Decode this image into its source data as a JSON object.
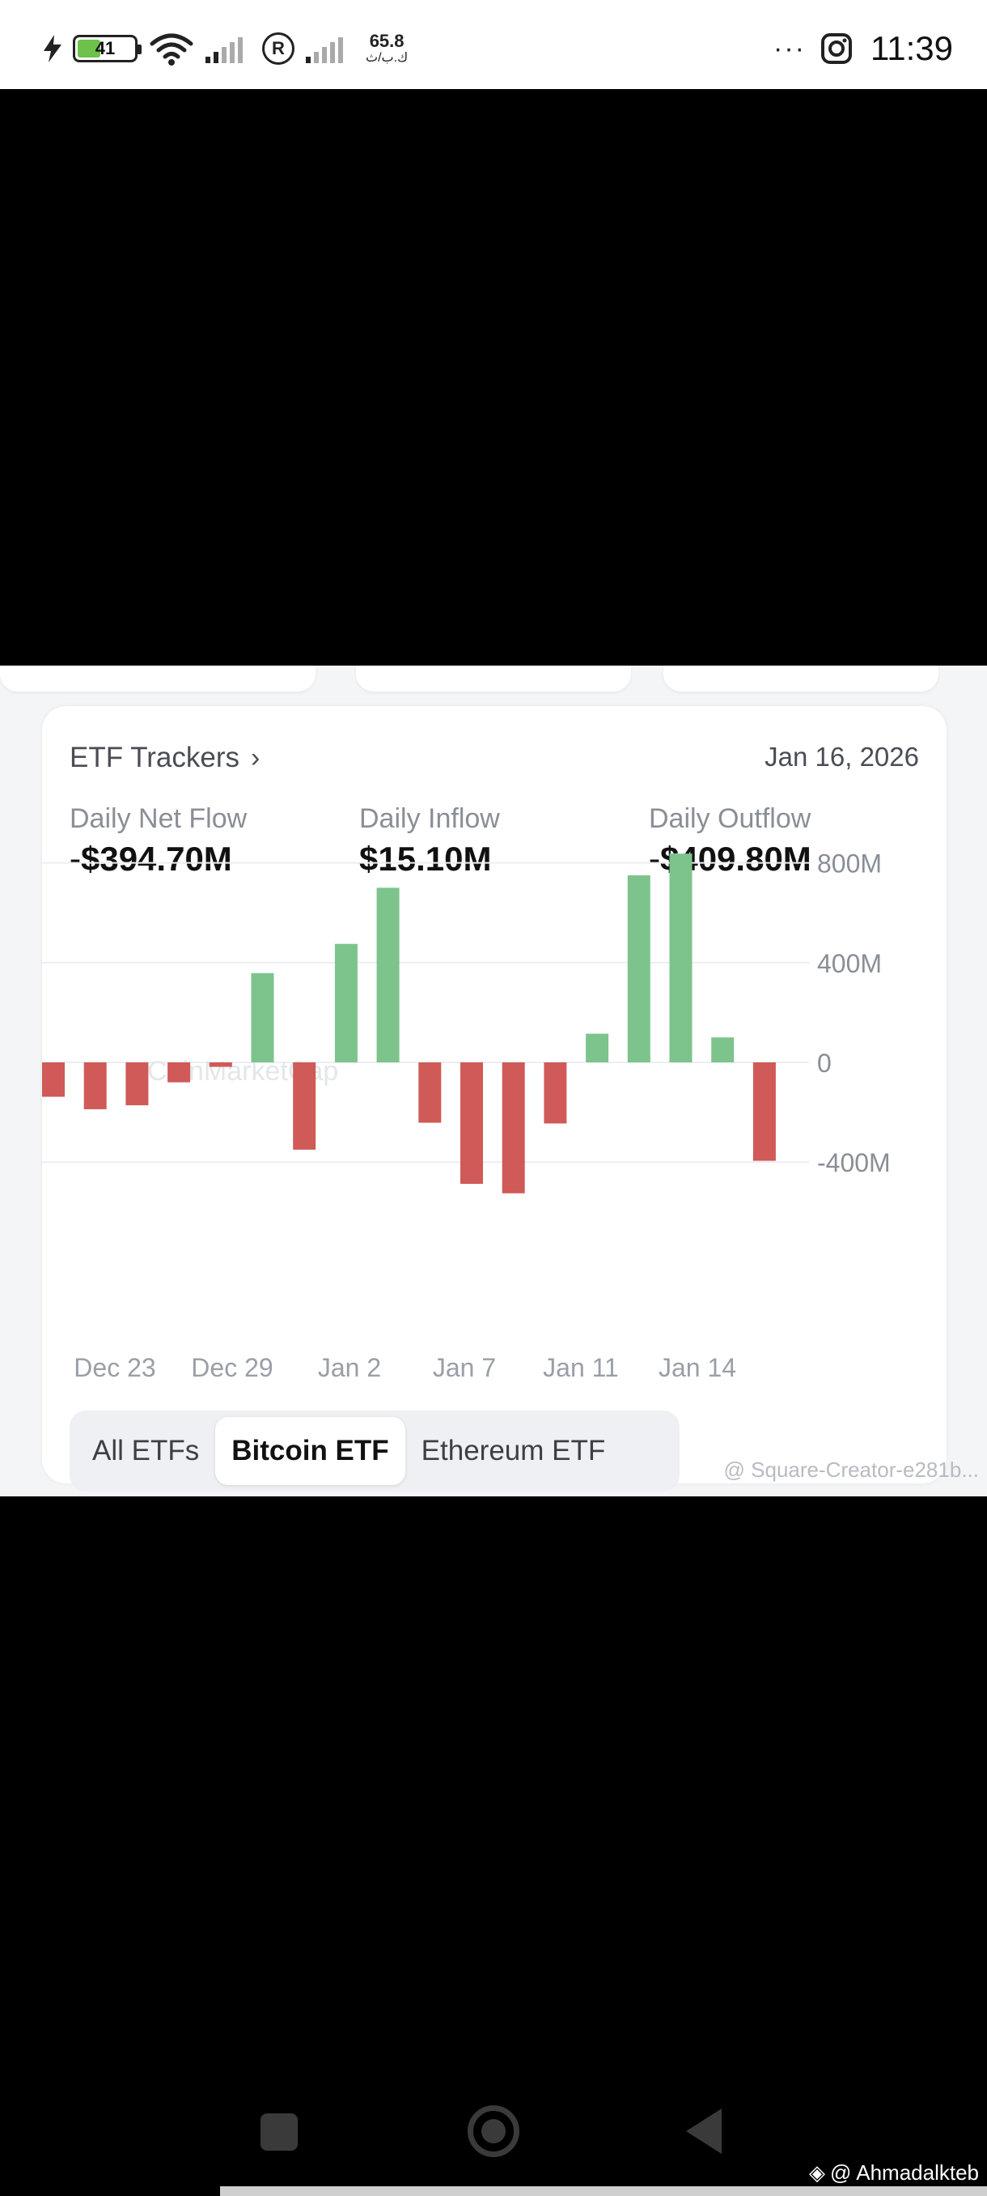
{
  "status_bar": {
    "battery": "41",
    "battery_level": 0.41,
    "speed_value": "65.8",
    "speed_unit": "ك.ب/ث",
    "r_icon_label": "R",
    "more": "···",
    "time": "11:39"
  },
  "etf": {
    "title": "ETF Trackers",
    "date": "Jan 16, 2026",
    "net_flow_label": "Daily Net Flow",
    "net_flow_value": "-$394.70M",
    "inflow_label": "Daily Inflow",
    "inflow_value": "$15.10M",
    "outflow_label": "Daily Outflow",
    "outflow_value": "-$409.80M",
    "chart_watermark": "CoinMarketCap",
    "tabs": [
      "All ETFs",
      "Bitcoin ETF",
      "Ethereum ETF"
    ],
    "active_tab": 1,
    "source_watermark": "@ Square-Creator-e281b..."
  },
  "credit": "@ Ahmadalkteb",
  "chart_data": {
    "type": "bar",
    "title": "",
    "xlabel": "",
    "ylabel": "",
    "x_tick_labels": [
      "Dec 23",
      "Dec 29",
      "Jan 2",
      "Jan 7",
      "Jan 11",
      "Jan 14"
    ],
    "y_tick_labels": [
      "800M",
      "400M",
      "0",
      "-400M"
    ],
    "y_ticks": [
      800,
      400,
      0,
      -400
    ],
    "ylim": [
      -500,
      850
    ],
    "grid": true,
    "positive_color": "#7cc48c",
    "negative_color": "#cf5a57",
    "values": [
      -138,
      -188,
      -172,
      -80,
      -18,
      358,
      -350,
      475,
      700,
      -242,
      -487,
      -525,
      -245,
      115,
      750,
      837,
      100,
      -394.7
    ]
  }
}
